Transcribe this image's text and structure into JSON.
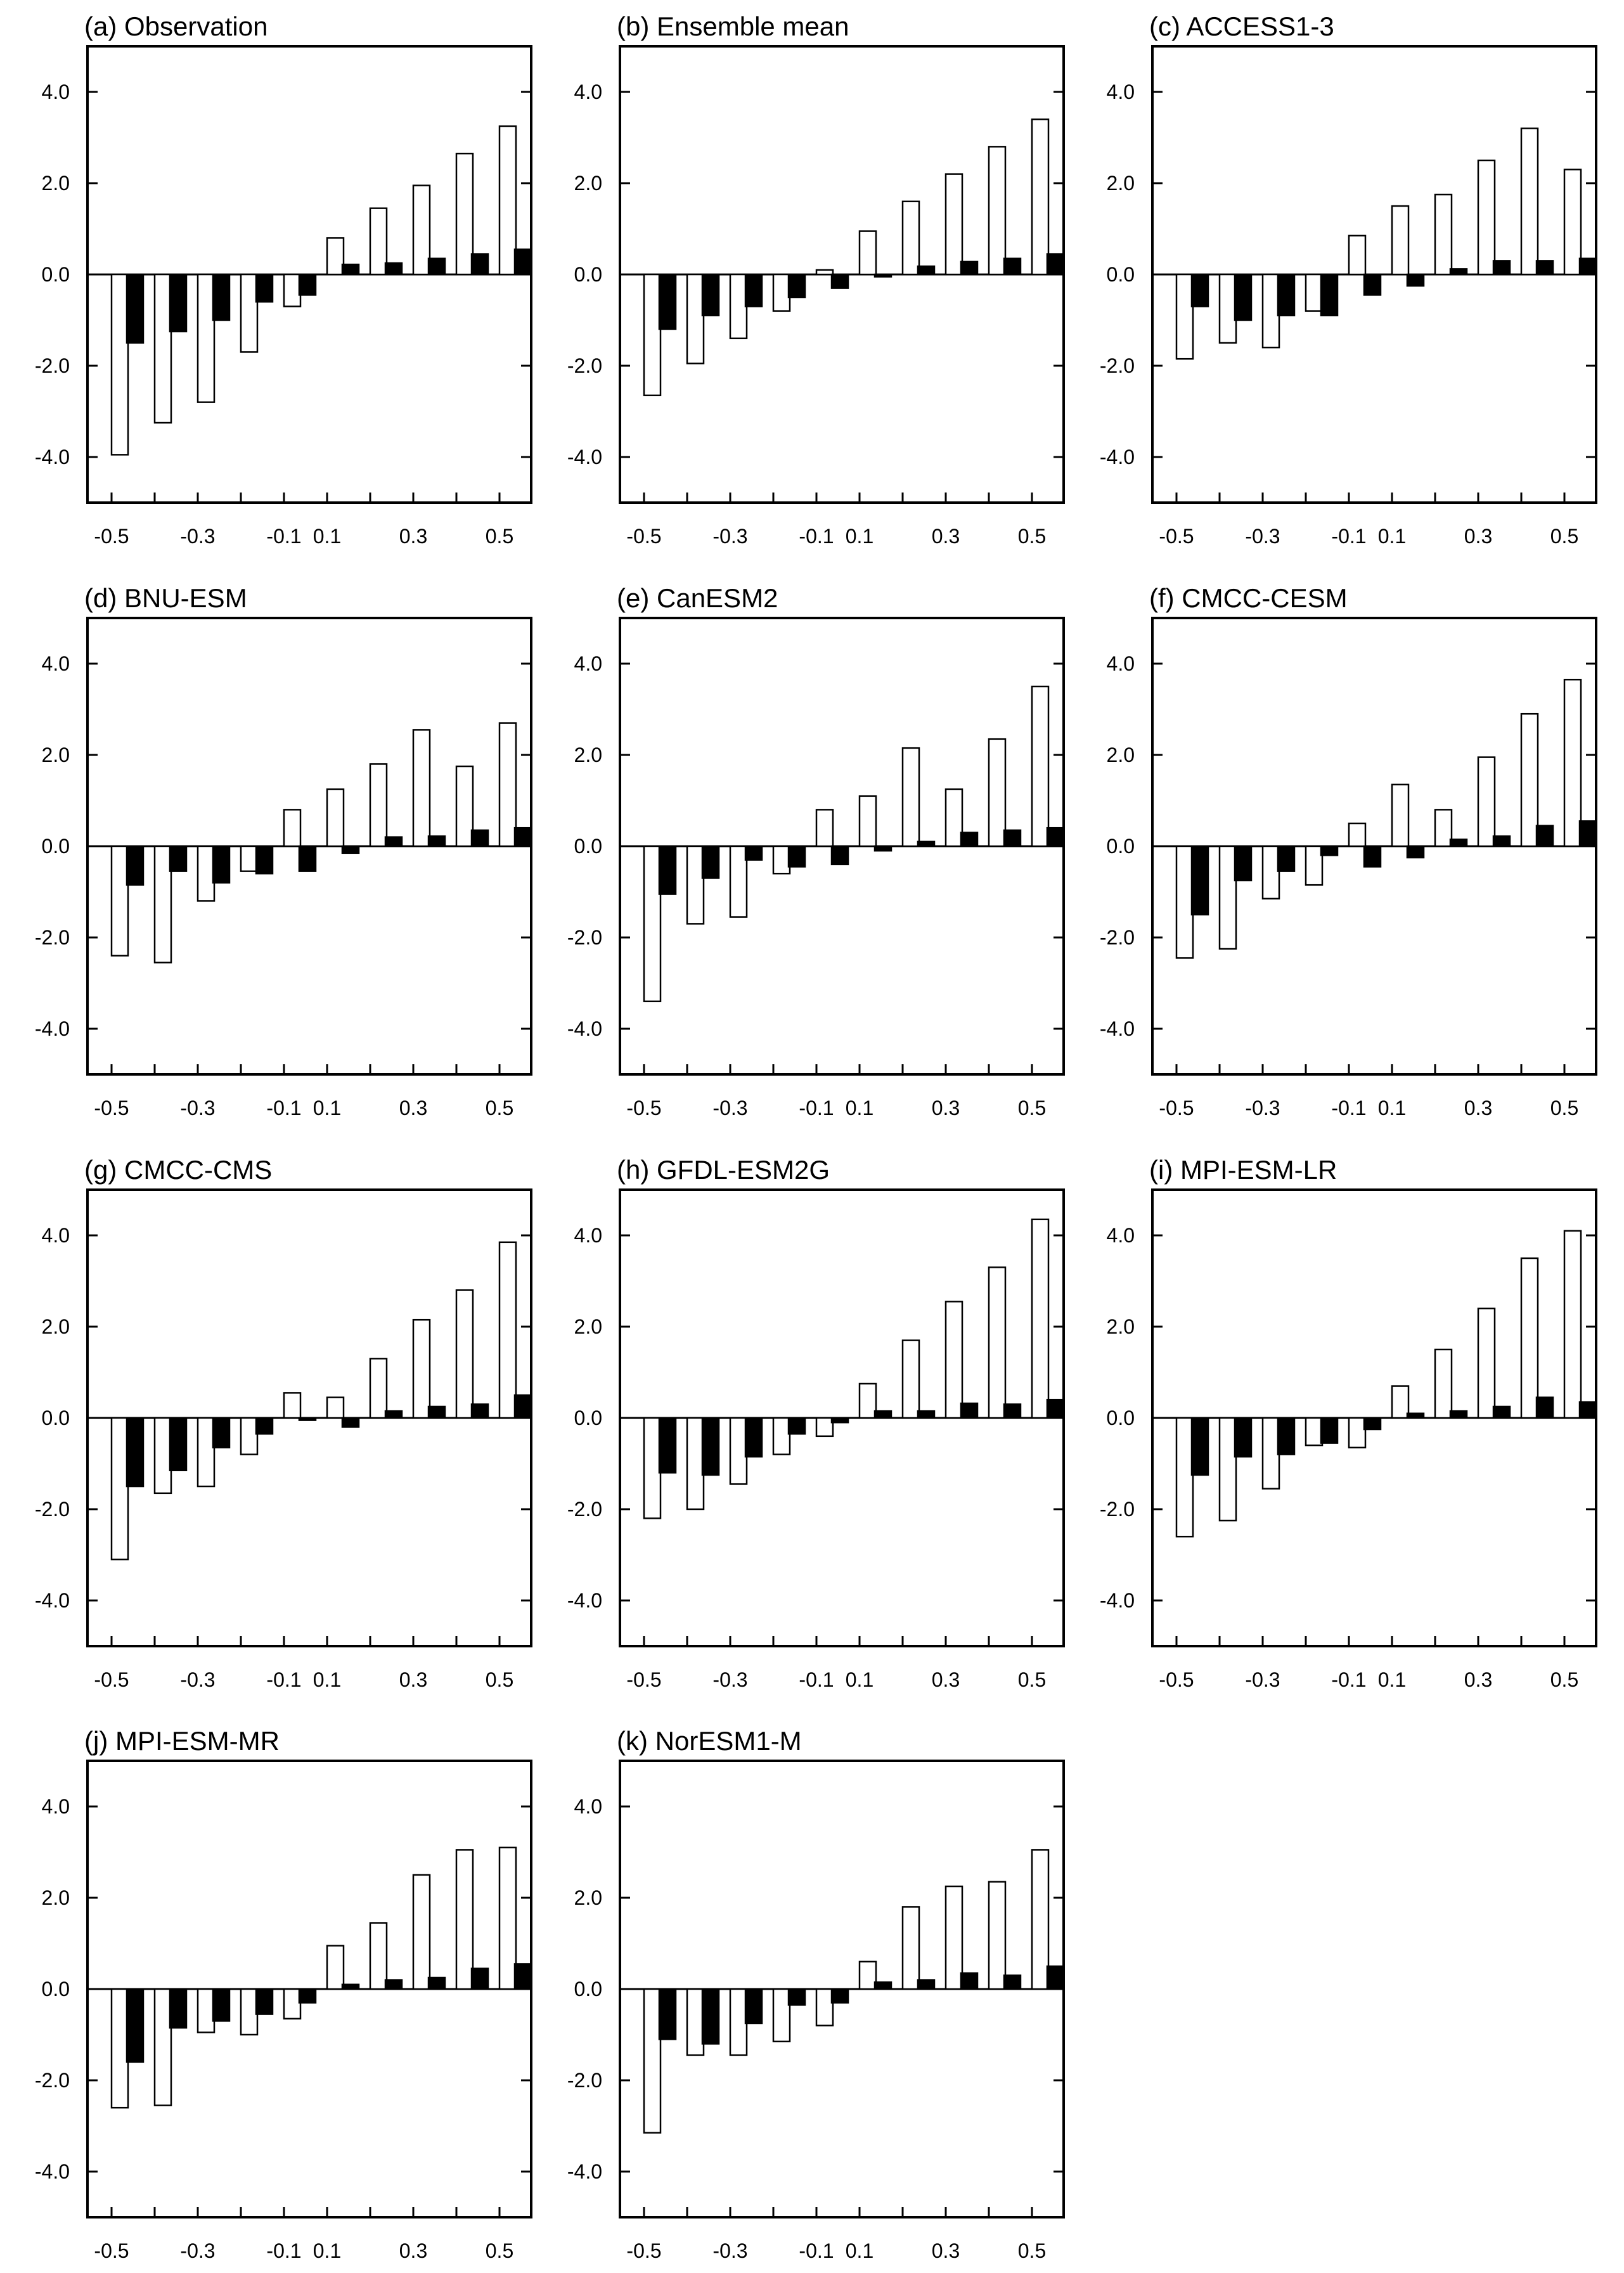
{
  "chart_data": [
    {
      "type": "bar",
      "title": "(a) Observation",
      "categories": [
        "-0.5",
        "-0.4",
        "-0.3",
        "-0.2",
        "-0.1",
        "0.1",
        "0.2",
        "0.3",
        "0.4",
        "0.5"
      ],
      "series": [
        {
          "name": "open",
          "values": [
            -3.95,
            -3.25,
            -2.8,
            -1.7,
            -0.7,
            0.8,
            1.45,
            1.95,
            2.65,
            3.25
          ]
        },
        {
          "name": "filled",
          "values": [
            -1.5,
            -1.25,
            -1.0,
            -0.6,
            -0.45,
            0.22,
            0.25,
            0.35,
            0.45,
            0.55
          ]
        }
      ],
      "xticks": [
        "-0.5",
        "-0.3",
        "-0.1",
        "0.1",
        "0.3",
        "0.5"
      ],
      "yticks": [
        "-4.0",
        "-2.0",
        "0.0",
        "2.0",
        "4.0"
      ],
      "ylim": [
        -5.0,
        5.0
      ],
      "xlabel": "",
      "ylabel": ""
    },
    {
      "type": "bar",
      "title": "(b) Ensemble mean",
      "categories": [
        "-0.5",
        "-0.4",
        "-0.3",
        "-0.2",
        "-0.1",
        "0.1",
        "0.2",
        "0.3",
        "0.4",
        "0.5"
      ],
      "series": [
        {
          "name": "open",
          "values": [
            -2.65,
            -1.95,
            -1.4,
            -0.8,
            0.1,
            0.95,
            1.6,
            2.2,
            2.8,
            3.4
          ]
        },
        {
          "name": "filled",
          "values": [
            -1.2,
            -0.9,
            -0.7,
            -0.5,
            -0.3,
            -0.05,
            0.18,
            0.28,
            0.35,
            0.45
          ]
        }
      ],
      "xticks": [
        "-0.5",
        "-0.3",
        "-0.1",
        "0.1",
        "0.3",
        "0.5"
      ],
      "yticks": [
        "-4.0",
        "-2.0",
        "0.0",
        "2.0",
        "4.0"
      ],
      "ylim": [
        -5.0,
        5.0
      ],
      "xlabel": "",
      "ylabel": ""
    },
    {
      "type": "bar",
      "title": "(c) ACCESS1-3",
      "categories": [
        "-0.5",
        "-0.4",
        "-0.3",
        "-0.2",
        "-0.1",
        "0.1",
        "0.2",
        "0.3",
        "0.4",
        "0.5"
      ],
      "series": [
        {
          "name": "open",
          "values": [
            -1.85,
            -1.5,
            -1.6,
            -0.8,
            0.85,
            1.5,
            1.75,
            2.5,
            3.2,
            2.3
          ]
        },
        {
          "name": "filled",
          "values": [
            -0.7,
            -1.0,
            -0.9,
            -0.9,
            -0.45,
            -0.25,
            0.12,
            0.3,
            0.3,
            0.35
          ]
        }
      ],
      "xticks": [
        "-0.5",
        "-0.3",
        "-0.1",
        "0.1",
        "0.3",
        "0.5"
      ],
      "yticks": [
        "-4.0",
        "-2.0",
        "0.0",
        "2.0",
        "4.0"
      ],
      "ylim": [
        -5.0,
        5.0
      ],
      "xlabel": "",
      "ylabel": ""
    },
    {
      "type": "bar",
      "title": "(d) BNU-ESM",
      "categories": [
        "-0.5",
        "-0.4",
        "-0.3",
        "-0.2",
        "-0.1",
        "0.1",
        "0.2",
        "0.3",
        "0.4",
        "0.5"
      ],
      "series": [
        {
          "name": "open",
          "values": [
            -2.4,
            -2.55,
            -1.2,
            -0.55,
            0.8,
            1.25,
            1.8,
            2.55,
            1.75,
            2.7
          ]
        },
        {
          "name": "filled",
          "values": [
            -0.85,
            -0.55,
            -0.8,
            -0.6,
            -0.55,
            -0.15,
            0.2,
            0.22,
            0.35,
            0.4
          ]
        }
      ],
      "xticks": [
        "-0.5",
        "-0.3",
        "-0.1",
        "0.1",
        "0.3",
        "0.5"
      ],
      "yticks": [
        "-4.0",
        "-2.0",
        "0.0",
        "2.0",
        "4.0"
      ],
      "ylim": [
        -5.0,
        5.0
      ],
      "xlabel": "",
      "ylabel": ""
    },
    {
      "type": "bar",
      "title": "(e) CanESM2",
      "categories": [
        "-0.5",
        "-0.4",
        "-0.3",
        "-0.2",
        "-0.1",
        "0.1",
        "0.2",
        "0.3",
        "0.4",
        "0.5"
      ],
      "series": [
        {
          "name": "open",
          "values": [
            -3.4,
            -1.7,
            -1.55,
            -0.6,
            0.8,
            1.1,
            2.15,
            1.25,
            2.35,
            3.5
          ]
        },
        {
          "name": "filled",
          "values": [
            -1.05,
            -0.7,
            -0.3,
            -0.45,
            -0.4,
            -0.1,
            0.1,
            0.3,
            0.35,
            0.4
          ]
        }
      ],
      "xticks": [
        "-0.5",
        "-0.3",
        "-0.1",
        "0.1",
        "0.3",
        "0.5"
      ],
      "yticks": [
        "-4.0",
        "-2.0",
        "0.0",
        "2.0",
        "4.0"
      ],
      "ylim": [
        -5.0,
        5.0
      ],
      "xlabel": "",
      "ylabel": ""
    },
    {
      "type": "bar",
      "title": "(f) CMCC-CESM",
      "categories": [
        "-0.5",
        "-0.4",
        "-0.3",
        "-0.2",
        "-0.1",
        "0.1",
        "0.2",
        "0.3",
        "0.4",
        "0.5"
      ],
      "series": [
        {
          "name": "open",
          "values": [
            -2.45,
            -2.25,
            -1.15,
            -0.85,
            0.5,
            1.35,
            0.8,
            1.95,
            2.9,
            3.65
          ]
        },
        {
          "name": "filled",
          "values": [
            -1.5,
            -0.75,
            -0.55,
            -0.2,
            -0.45,
            -0.25,
            0.15,
            0.22,
            0.45,
            0.55
          ]
        }
      ],
      "xticks": [
        "-0.5",
        "-0.3",
        "-0.1",
        "0.1",
        "0.3",
        "0.5"
      ],
      "yticks": [
        "-4.0",
        "-2.0",
        "0.0",
        "2.0",
        "4.0"
      ],
      "ylim": [
        -5.0,
        5.0
      ],
      "xlabel": "",
      "ylabel": ""
    },
    {
      "type": "bar",
      "title": "(g) CMCC-CMS",
      "categories": [
        "-0.5",
        "-0.4",
        "-0.3",
        "-0.2",
        "-0.1",
        "0.1",
        "0.2",
        "0.3",
        "0.4",
        "0.5"
      ],
      "series": [
        {
          "name": "open",
          "values": [
            -3.1,
            -1.65,
            -1.5,
            -0.8,
            0.55,
            0.45,
            1.3,
            2.15,
            2.8,
            3.85
          ]
        },
        {
          "name": "filled",
          "values": [
            -1.5,
            -1.15,
            -0.65,
            -0.35,
            -0.05,
            -0.2,
            0.15,
            0.25,
            0.3,
            0.5
          ]
        }
      ],
      "xticks": [
        "-0.5",
        "-0.3",
        "-0.1",
        "0.1",
        "0.3",
        "0.5"
      ],
      "yticks": [
        "-4.0",
        "-2.0",
        "0.0",
        "2.0",
        "4.0"
      ],
      "ylim": [
        -5.0,
        5.0
      ],
      "xlabel": "",
      "ylabel": ""
    },
    {
      "type": "bar",
      "title": "(h) GFDL-ESM2G",
      "categories": [
        "-0.5",
        "-0.4",
        "-0.3",
        "-0.2",
        "-0.1",
        "0.1",
        "0.2",
        "0.3",
        "0.4",
        "0.5"
      ],
      "series": [
        {
          "name": "open",
          "values": [
            -2.2,
            -2.0,
            -1.45,
            -0.8,
            -0.4,
            0.75,
            1.7,
            2.55,
            3.3,
            4.35
          ]
        },
        {
          "name": "filled",
          "values": [
            -1.2,
            -1.25,
            -0.85,
            -0.35,
            -0.1,
            0.15,
            0.15,
            0.32,
            0.3,
            0.4
          ]
        }
      ],
      "xticks": [
        "-0.5",
        "-0.3",
        "-0.1",
        "0.1",
        "0.3",
        "0.5"
      ],
      "yticks": [
        "-4.0",
        "-2.0",
        "0.0",
        "2.0",
        "4.0"
      ],
      "ylim": [
        -5.0,
        5.0
      ],
      "xlabel": "",
      "ylabel": ""
    },
    {
      "type": "bar",
      "title": "(i) MPI-ESM-LR",
      "categories": [
        "-0.5",
        "-0.4",
        "-0.3",
        "-0.2",
        "-0.1",
        "0.1",
        "0.2",
        "0.3",
        "0.4",
        "0.5"
      ],
      "series": [
        {
          "name": "open",
          "values": [
            -2.6,
            -2.25,
            -1.55,
            -0.6,
            -0.65,
            0.7,
            1.5,
            2.4,
            3.5,
            4.1
          ]
        },
        {
          "name": "filled",
          "values": [
            -1.25,
            -0.85,
            -0.8,
            -0.55,
            -0.25,
            0.1,
            0.15,
            0.25,
            0.45,
            0.35
          ]
        }
      ],
      "xticks": [
        "-0.5",
        "-0.3",
        "-0.1",
        "0.1",
        "0.3",
        "0.5"
      ],
      "yticks": [
        "-4.0",
        "-2.0",
        "0.0",
        "2.0",
        "4.0"
      ],
      "ylim": [
        -5.0,
        5.0
      ],
      "xlabel": "",
      "ylabel": ""
    },
    {
      "type": "bar",
      "title": "(j) MPI-ESM-MR",
      "categories": [
        "-0.5",
        "-0.4",
        "-0.3",
        "-0.2",
        "-0.1",
        "0.1",
        "0.2",
        "0.3",
        "0.4",
        "0.5"
      ],
      "series": [
        {
          "name": "open",
          "values": [
            -2.6,
            -2.55,
            -0.95,
            -1.0,
            -0.65,
            0.95,
            1.45,
            2.5,
            3.05,
            3.1
          ]
        },
        {
          "name": "filled",
          "values": [
            -1.6,
            -0.85,
            -0.7,
            -0.55,
            -0.3,
            0.1,
            0.2,
            0.25,
            0.45,
            0.55
          ]
        }
      ],
      "xticks": [
        "-0.5",
        "-0.3",
        "-0.1",
        "0.1",
        "0.3",
        "0.5"
      ],
      "yticks": [
        "-4.0",
        "-2.0",
        "0.0",
        "2.0",
        "4.0"
      ],
      "ylim": [
        -5.0,
        5.0
      ],
      "xlabel": "",
      "ylabel": ""
    },
    {
      "type": "bar",
      "title": "(k) NorESM1-M",
      "categories": [
        "-0.5",
        "-0.4",
        "-0.3",
        "-0.2",
        "-0.1",
        "0.1",
        "0.2",
        "0.3",
        "0.4",
        "0.5"
      ],
      "series": [
        {
          "name": "open",
          "values": [
            -3.15,
            -1.45,
            -1.45,
            -1.15,
            -0.8,
            0.6,
            1.8,
            2.25,
            2.35,
            3.05
          ]
        },
        {
          "name": "filled",
          "values": [
            -1.1,
            -1.2,
            -0.75,
            -0.35,
            -0.3,
            0.15,
            0.2,
            0.35,
            0.3,
            0.5
          ]
        }
      ],
      "xticks": [
        "-0.5",
        "-0.3",
        "-0.1",
        "0.1",
        "0.3",
        "0.5"
      ],
      "yticks": [
        "-4.0",
        "-2.0",
        "0.0",
        "2.0",
        "4.0"
      ],
      "ylim": [
        -5.0,
        5.0
      ],
      "xlabel": "",
      "ylabel": ""
    }
  ],
  "colors": {
    "open_bar_fill": "#ffffff",
    "filled_bar_fill": "#000000",
    "stroke": "#000000"
  }
}
